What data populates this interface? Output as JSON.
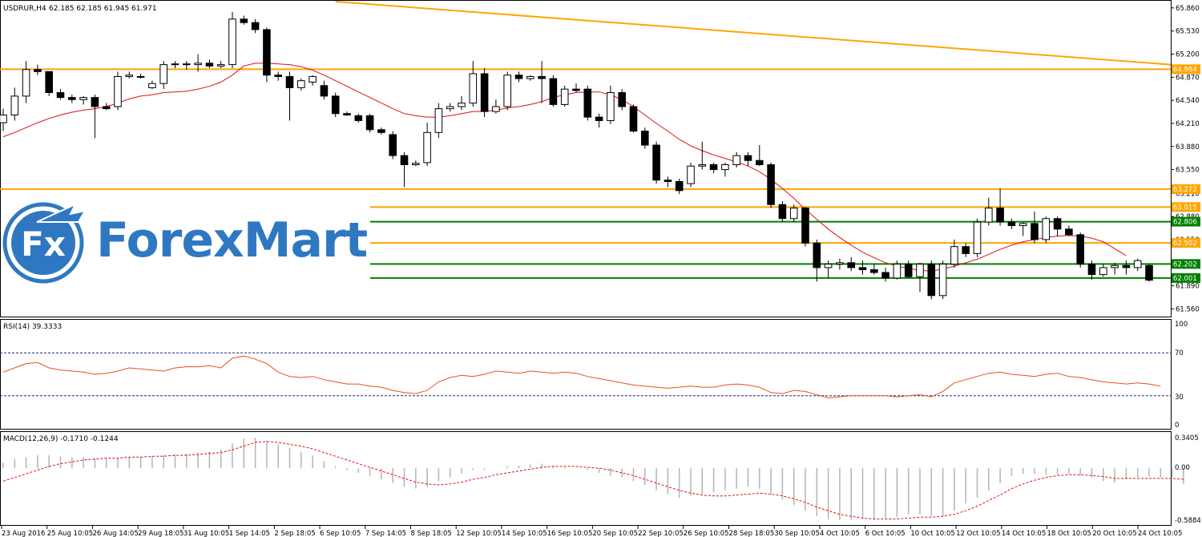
{
  "header": {
    "symbol": "USDRUR,H4",
    "ohlc": "62.185 62.185 61.945 61.971"
  },
  "logo": {
    "icon_text": "Fx",
    "name": "ForexMart"
  },
  "rsi_panel": {
    "label": "RSI(14) 39.3333",
    "levels": [
      "100",
      "70",
      "30",
      "0"
    ]
  },
  "macd_panel": {
    "label": "MACD(12,26,9) -0.1710 -0.1244",
    "levels": [
      "0.3405",
      "0.00",
      "-0.5884"
    ]
  },
  "price_axis": [
    "65.860",
    "65.530",
    "65.200",
    "64.870",
    "64.540",
    "64.210",
    "63.880",
    "63.550",
    "63.210",
    "62.880",
    "62.550",
    "62.220",
    "61.890",
    "61.560"
  ],
  "time_axis": [
    "23 Aug 2016",
    "25 Aug 10:05",
    "26 Aug 14:05",
    "29 Aug 18:05",
    "31 Aug 10:05",
    "1 Sep 14:05",
    "2 Sep 18:05",
    "6 Sep 10:05",
    "7 Sep 14:05",
    "8 Sep 18:05",
    "12 Sep 10:05",
    "14 Sep 10:05",
    "16 Sep 10:05",
    "20 Sep 10:05",
    "22 Sep 10:05",
    "26 Sep 10:05",
    "28 Sep 18:05",
    "30 Sep 10:05",
    "4 Oct 10:05",
    "6 Oct 10:05",
    "10 Oct 10:05",
    "12 Oct 10:05",
    "14 Oct 10:05",
    "18 Oct 10:05",
    "20 Oct 10:05",
    "24 Oct 10:05"
  ],
  "chart_data": {
    "type": "candlestick",
    "title": "USDRUR,H4",
    "ylim": [
      61.45,
      65.95
    ],
    "horizontal_levels": [
      {
        "value": 64.984,
        "label": "64.984",
        "color": "#ffa500"
      },
      {
        "value": 63.272,
        "label": "63.272",
        "color": "#ffa500"
      },
      {
        "value": 63.015,
        "label": "63.015",
        "color": "#ffa500"
      },
      {
        "value": 62.806,
        "label": "62.806",
        "color": "#008000"
      },
      {
        "value": 62.502,
        "label": "62.502",
        "color": "#ffa500"
      },
      {
        "value": 62.202,
        "label": "62.202",
        "color": "#008000"
      },
      {
        "value": 62.001,
        "label": "62.001",
        "color": "#008000"
      }
    ],
    "trendline": {
      "color": "#ffa500",
      "from": {
        "index": 29,
        "value": 65.95
      },
      "to": {
        "index": 103,
        "value": 65.05
      }
    },
    "candles": [
      {
        "o": 64.22,
        "h": 64.42,
        "l": 64.1,
        "c": 64.33
      },
      {
        "o": 64.33,
        "h": 64.72,
        "l": 64.25,
        "c": 64.6
      },
      {
        "o": 64.6,
        "h": 65.1,
        "l": 64.5,
        "c": 64.98
      },
      {
        "o": 64.98,
        "h": 65.05,
        "l": 64.9,
        "c": 64.95
      },
      {
        "o": 64.95,
        "h": 64.95,
        "l": 64.6,
        "c": 64.65
      },
      {
        "o": 64.65,
        "h": 64.7,
        "l": 64.55,
        "c": 64.58
      },
      {
        "o": 64.58,
        "h": 64.62,
        "l": 64.5,
        "c": 64.55
      },
      {
        "o": 64.55,
        "h": 64.6,
        "l": 64.48,
        "c": 64.58
      },
      {
        "o": 64.58,
        "h": 64.62,
        "l": 64.0,
        "c": 64.45
      },
      {
        "o": 64.45,
        "h": 64.5,
        "l": 64.4,
        "c": 64.42
      },
      {
        "o": 64.45,
        "h": 64.95,
        "l": 64.4,
        "c": 64.88
      },
      {
        "o": 64.88,
        "h": 64.95,
        "l": 64.85,
        "c": 64.9
      },
      {
        "o": 64.88,
        "h": 64.92,
        "l": 64.85,
        "c": 64.87
      },
      {
        "o": 64.72,
        "h": 64.82,
        "l": 64.7,
        "c": 64.78
      },
      {
        "o": 64.78,
        "h": 65.1,
        "l": 64.7,
        "c": 65.05
      },
      {
        "o": 65.05,
        "h": 65.1,
        "l": 65.0,
        "c": 65.06
      },
      {
        "o": 65.06,
        "h": 65.1,
        "l": 64.98,
        "c": 65.05
      },
      {
        "o": 65.05,
        "h": 65.2,
        "l": 64.95,
        "c": 65.07
      },
      {
        "o": 65.07,
        "h": 65.12,
        "l": 65.0,
        "c": 65.03
      },
      {
        "o": 65.03,
        "h": 65.1,
        "l": 65.0,
        "c": 65.05
      },
      {
        "o": 65.05,
        "h": 65.8,
        "l": 65.0,
        "c": 65.7
      },
      {
        "o": 65.7,
        "h": 65.75,
        "l": 65.62,
        "c": 65.65
      },
      {
        "o": 65.65,
        "h": 65.7,
        "l": 65.5,
        "c": 65.55
      },
      {
        "o": 65.55,
        "h": 65.58,
        "l": 64.8,
        "c": 64.9
      },
      {
        "o": 64.9,
        "h": 64.95,
        "l": 64.82,
        "c": 64.88
      },
      {
        "o": 64.88,
        "h": 64.95,
        "l": 64.25,
        "c": 64.72
      },
      {
        "o": 64.72,
        "h": 64.85,
        "l": 64.68,
        "c": 64.82
      },
      {
        "o": 64.8,
        "h": 64.9,
        "l": 64.75,
        "c": 64.88
      },
      {
        "o": 64.75,
        "h": 64.82,
        "l": 64.55,
        "c": 64.6
      },
      {
        "o": 64.6,
        "h": 64.65,
        "l": 64.3,
        "c": 64.35
      },
      {
        "o": 64.35,
        "h": 64.38,
        "l": 64.32,
        "c": 64.33
      },
      {
        "o": 64.32,
        "h": 64.35,
        "l": 64.22,
        "c": 64.25
      },
      {
        "o": 64.32,
        "h": 64.35,
        "l": 64.08,
        "c": 64.12
      },
      {
        "o": 64.12,
        "h": 64.15,
        "l": 64.05,
        "c": 64.08
      },
      {
        "o": 64.05,
        "h": 64.1,
        "l": 63.7,
        "c": 63.75
      },
      {
        "o": 63.75,
        "h": 63.8,
        "l": 63.3,
        "c": 63.62
      },
      {
        "o": 63.62,
        "h": 63.68,
        "l": 63.6,
        "c": 63.64
      },
      {
        "o": 63.65,
        "h": 64.22,
        "l": 63.6,
        "c": 64.08
      },
      {
        "o": 64.08,
        "h": 64.5,
        "l": 64.0,
        "c": 64.42
      },
      {
        "o": 64.42,
        "h": 64.5,
        "l": 64.38,
        "c": 64.45
      },
      {
        "o": 64.45,
        "h": 64.6,
        "l": 64.4,
        "c": 64.5
      },
      {
        "o": 64.5,
        "h": 65.1,
        "l": 64.45,
        "c": 64.92
      },
      {
        "o": 64.92,
        "h": 65.0,
        "l": 64.3,
        "c": 64.38
      },
      {
        "o": 64.38,
        "h": 64.55,
        "l": 64.35,
        "c": 64.45
      },
      {
        "o": 64.45,
        "h": 64.95,
        "l": 64.4,
        "c": 64.9
      },
      {
        "o": 64.9,
        "h": 64.95,
        "l": 64.8,
        "c": 64.85
      },
      {
        "o": 64.85,
        "h": 64.9,
        "l": 64.82,
        "c": 64.88
      },
      {
        "o": 64.88,
        "h": 65.1,
        "l": 64.5,
        "c": 64.85
      },
      {
        "o": 64.85,
        "h": 64.9,
        "l": 64.45,
        "c": 64.48
      },
      {
        "o": 64.48,
        "h": 64.75,
        "l": 64.45,
        "c": 64.7
      },
      {
        "o": 64.7,
        "h": 64.78,
        "l": 64.65,
        "c": 64.68
      },
      {
        "o": 64.7,
        "h": 64.75,
        "l": 64.25,
        "c": 64.3
      },
      {
        "o": 64.3,
        "h": 64.35,
        "l": 64.15,
        "c": 64.25
      },
      {
        "o": 64.25,
        "h": 64.75,
        "l": 64.2,
        "c": 64.65
      },
      {
        "o": 64.65,
        "h": 64.7,
        "l": 64.4,
        "c": 64.45
      },
      {
        "o": 64.45,
        "h": 64.48,
        "l": 64.08,
        "c": 64.1
      },
      {
        "o": 64.1,
        "h": 64.15,
        "l": 63.85,
        "c": 63.9
      },
      {
        "o": 63.9,
        "h": 63.95,
        "l": 63.35,
        "c": 63.4
      },
      {
        "o": 63.4,
        "h": 63.45,
        "l": 63.3,
        "c": 63.38
      },
      {
        "o": 63.38,
        "h": 63.42,
        "l": 63.2,
        "c": 63.25
      },
      {
        "o": 63.35,
        "h": 63.65,
        "l": 63.3,
        "c": 63.6
      },
      {
        "o": 63.6,
        "h": 63.95,
        "l": 63.55,
        "c": 63.62
      },
      {
        "o": 63.62,
        "h": 63.65,
        "l": 63.5,
        "c": 63.55
      },
      {
        "o": 63.55,
        "h": 63.65,
        "l": 63.45,
        "c": 63.62
      },
      {
        "o": 63.62,
        "h": 63.8,
        "l": 63.58,
        "c": 63.75
      },
      {
        "o": 63.75,
        "h": 63.8,
        "l": 63.6,
        "c": 63.68
      },
      {
        "o": 63.68,
        "h": 63.9,
        "l": 63.6,
        "c": 63.62
      },
      {
        "o": 63.62,
        "h": 63.65,
        "l": 63.0,
        "c": 63.05
      },
      {
        "o": 63.05,
        "h": 63.1,
        "l": 62.8,
        "c": 62.85
      },
      {
        "o": 62.85,
        "h": 63.05,
        "l": 62.8,
        "c": 63.0
      },
      {
        "o": 63.0,
        "h": 63.02,
        "l": 62.45,
        "c": 62.5
      },
      {
        "o": 62.5,
        "h": 62.55,
        "l": 61.95,
        "c": 62.15
      },
      {
        "o": 62.15,
        "h": 62.25,
        "l": 62.0,
        "c": 62.2
      },
      {
        "o": 62.2,
        "h": 62.28,
        "l": 62.12,
        "c": 62.22
      },
      {
        "o": 62.22,
        "h": 62.3,
        "l": 62.1,
        "c": 62.15
      },
      {
        "o": 62.15,
        "h": 62.25,
        "l": 62.05,
        "c": 62.12
      },
      {
        "o": 62.12,
        "h": 62.2,
        "l": 62.05,
        "c": 62.08
      },
      {
        "o": 62.08,
        "h": 62.15,
        "l": 61.95,
        "c": 62.0
      },
      {
        "o": 62.0,
        "h": 62.25,
        "l": 61.98,
        "c": 62.2
      },
      {
        "o": 62.2,
        "h": 62.25,
        "l": 62.0,
        "c": 62.02
      },
      {
        "o": 62.02,
        "h": 62.22,
        "l": 61.8,
        "c": 62.2
      },
      {
        "o": 62.2,
        "h": 62.25,
        "l": 61.7,
        "c": 61.75
      },
      {
        "o": 61.75,
        "h": 62.25,
        "l": 61.7,
        "c": 62.2
      },
      {
        "o": 62.2,
        "h": 62.55,
        "l": 62.15,
        "c": 62.45
      },
      {
        "o": 62.45,
        "h": 62.5,
        "l": 62.3,
        "c": 62.35
      },
      {
        "o": 62.35,
        "h": 62.85,
        "l": 62.3,
        "c": 62.8
      },
      {
        "o": 62.8,
        "h": 63.15,
        "l": 62.75,
        "c": 63.0
      },
      {
        "o": 63.0,
        "h": 63.28,
        "l": 62.75,
        "c": 62.8
      },
      {
        "o": 62.8,
        "h": 62.85,
        "l": 62.7,
        "c": 62.75
      },
      {
        "o": 62.75,
        "h": 62.8,
        "l": 62.6,
        "c": 62.78
      },
      {
        "o": 62.78,
        "h": 62.95,
        "l": 62.5,
        "c": 62.55
      },
      {
        "o": 62.55,
        "h": 62.88,
        "l": 62.5,
        "c": 62.85
      },
      {
        "o": 62.85,
        "h": 62.88,
        "l": 62.6,
        "c": 62.7
      },
      {
        "o": 62.7,
        "h": 62.75,
        "l": 62.6,
        "c": 62.62
      },
      {
        "o": 62.62,
        "h": 62.65,
        "l": 62.15,
        "c": 62.2
      },
      {
        "o": 62.2,
        "h": 62.25,
        "l": 61.98,
        "c": 62.05
      },
      {
        "o": 62.05,
        "h": 62.2,
        "l": 62.02,
        "c": 62.15
      },
      {
        "o": 62.15,
        "h": 62.22,
        "l": 62.05,
        "c": 62.18
      },
      {
        "o": 62.18,
        "h": 62.25,
        "l": 62.05,
        "c": 62.15
      },
      {
        "o": 62.15,
        "h": 62.28,
        "l": 62.1,
        "c": 62.25
      },
      {
        "o": 62.18,
        "h": 62.2,
        "l": 61.95,
        "c": 61.97
      }
    ],
    "ma": [
      64.02,
      64.08,
      64.15,
      64.22,
      64.28,
      64.33,
      64.37,
      64.4,
      64.42,
      64.45,
      64.5,
      64.56,
      64.6,
      64.62,
      64.65,
      64.66,
      64.67,
      64.7,
      64.74,
      64.8,
      64.9,
      65.03,
      65.07,
      65.07,
      65.06,
      65.05,
      65.02,
      64.97,
      64.9,
      64.82,
      64.74,
      64.66,
      64.58,
      64.5,
      64.42,
      64.35,
      64.32,
      64.3,
      64.3,
      64.32,
      64.35,
      64.38,
      64.38,
      64.4,
      64.43,
      64.45,
      64.48,
      64.52,
      64.58,
      64.62,
      64.65,
      64.66,
      64.66,
      64.62,
      64.55,
      64.45,
      64.33,
      64.21,
      64.1,
      63.98,
      63.89,
      63.82,
      63.76,
      63.71,
      63.66,
      63.6,
      63.52,
      63.41,
      63.28,
      63.14,
      62.98,
      62.84,
      62.7,
      62.58,
      62.47,
      62.37,
      62.29,
      62.22,
      62.17,
      62.14,
      62.11,
      62.1,
      62.13,
      62.17,
      62.22,
      62.27,
      62.34,
      62.41,
      62.47,
      62.52,
      62.55,
      62.58,
      62.6,
      62.61,
      62.6,
      62.57,
      62.52,
      62.42,
      62.32
    ],
    "rsi": {
      "levels": [
        70,
        30
      ],
      "ylim": [
        0,
        100
      ],
      "values": [
        52,
        56,
        60,
        61,
        56,
        54,
        53,
        52,
        50,
        51,
        53,
        56,
        55,
        54,
        53,
        56,
        57,
        57,
        58,
        56,
        65,
        67,
        64,
        60,
        52,
        48,
        47,
        48,
        45,
        43,
        41,
        41,
        39,
        38,
        35,
        33,
        32,
        35,
        43,
        47,
        49,
        48,
        50,
        53,
        52,
        51,
        53,
        52,
        51,
        52,
        51,
        48,
        46,
        44,
        42,
        40,
        39,
        38,
        37,
        38,
        39,
        38,
        38,
        40,
        41,
        40,
        38,
        33,
        32,
        35,
        34,
        31,
        28,
        29,
        30,
        30,
        30,
        30,
        29,
        30,
        31,
        29,
        34,
        42,
        45,
        48,
        51,
        52,
        50,
        49,
        48,
        50,
        51,
        48,
        47,
        45,
        43,
        42,
        41,
        42,
        41,
        39
      ]
    },
    "macd": {
      "ylim": [
        -0.5884,
        0.3405
      ],
      "histogram": [
        0.06,
        0.1,
        0.12,
        0.14,
        0.14,
        0.13,
        0.12,
        0.12,
        0.11,
        0.11,
        0.11,
        0.12,
        0.12,
        0.13,
        0.14,
        0.15,
        0.16,
        0.17,
        0.18,
        0.2,
        0.27,
        0.32,
        0.33,
        0.3,
        0.26,
        0.22,
        0.18,
        0.14,
        0.08,
        0.02,
        -0.02,
        -0.05,
        -0.08,
        -0.12,
        -0.16,
        -0.2,
        -0.22,
        -0.2,
        -0.14,
        -0.1,
        -0.06,
        -0.02,
        -0.02,
        0.0,
        0.02,
        0.03,
        0.04,
        0.05,
        0.03,
        0.01,
        0.0,
        -0.02,
        -0.05,
        -0.08,
        -0.1,
        -0.14,
        -0.18,
        -0.24,
        -0.28,
        -0.32,
        -0.3,
        -0.28,
        -0.26,
        -0.24,
        -0.22,
        -0.2,
        -0.22,
        -0.28,
        -0.34,
        -0.4,
        -0.46,
        -0.52,
        -0.55,
        -0.56,
        -0.56,
        -0.55,
        -0.55,
        -0.54,
        -0.53,
        -0.5,
        -0.5,
        -0.52,
        -0.52,
        -0.46,
        -0.38,
        -0.32,
        -0.24,
        -0.16,
        -0.08,
        -0.06,
        -0.06,
        -0.07,
        -0.07,
        -0.06,
        -0.08,
        -0.1,
        -0.14,
        -0.16,
        -0.12,
        -0.1,
        -0.09,
        -0.1,
        -0.1,
        -0.17
      ],
      "signal": [
        -0.14,
        -0.1,
        -0.06,
        -0.02,
        0.02,
        0.05,
        0.07,
        0.09,
        0.1,
        0.11,
        0.11,
        0.12,
        0.12,
        0.13,
        0.13,
        0.14,
        0.14,
        0.15,
        0.16,
        0.17,
        0.2,
        0.24,
        0.28,
        0.29,
        0.28,
        0.26,
        0.24,
        0.21,
        0.17,
        0.13,
        0.09,
        0.05,
        0.01,
        -0.03,
        -0.07,
        -0.11,
        -0.15,
        -0.17,
        -0.18,
        -0.17,
        -0.15,
        -0.12,
        -0.1,
        -0.07,
        -0.05,
        -0.03,
        -0.01,
        0.01,
        0.02,
        0.02,
        0.02,
        0.01,
        0.0,
        -0.02,
        -0.05,
        -0.08,
        -0.12,
        -0.16,
        -0.2,
        -0.24,
        -0.27,
        -0.29,
        -0.3,
        -0.3,
        -0.29,
        -0.28,
        -0.27,
        -0.28,
        -0.3,
        -0.33,
        -0.37,
        -0.42,
        -0.46,
        -0.5,
        -0.52,
        -0.54,
        -0.55,
        -0.55,
        -0.55,
        -0.54,
        -0.53,
        -0.53,
        -0.52,
        -0.5,
        -0.46,
        -0.41,
        -0.35,
        -0.29,
        -0.22,
        -0.17,
        -0.13,
        -0.1,
        -0.08,
        -0.07,
        -0.07,
        -0.08,
        -0.09,
        -0.11,
        -0.11,
        -0.11,
        -0.11,
        -0.11,
        -0.11,
        -0.12
      ]
    }
  }
}
